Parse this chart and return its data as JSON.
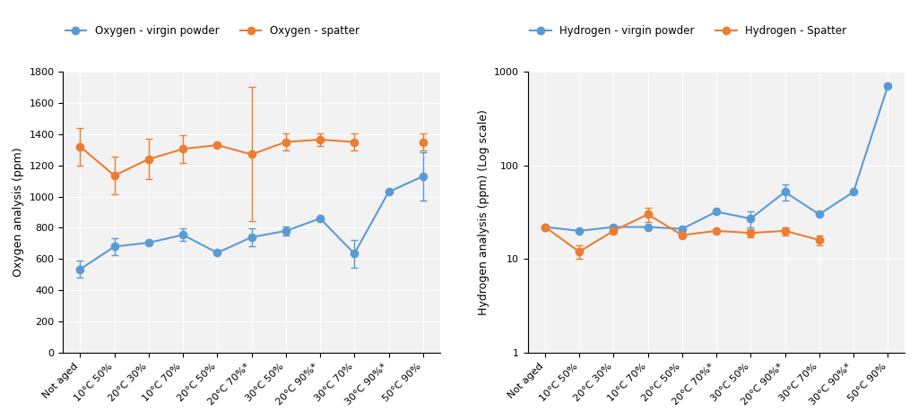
{
  "categories": [
    "Not aged",
    "10°C 50%",
    "20°C 30%",
    "10°C 70%",
    "20°C 50%",
    "20°C 70%*",
    "30°C 50%",
    "20°C 90%*",
    "30°C 70%",
    "30°C 90%*",
    "50°C 90%"
  ],
  "oxy_powder": [
    535,
    680,
    705,
    755,
    640,
    740,
    780,
    860,
    635,
    1030,
    1130
  ],
  "oxy_powder_err": [
    55,
    55,
    0,
    40,
    0,
    55,
    30,
    0,
    90,
    0,
    155
  ],
  "oxy_spatter": [
    1320,
    1135,
    1240,
    1305,
    1330,
    1270,
    1350,
    1365,
    1350,
    null,
    1350
  ],
  "oxy_spatter_err": [
    120,
    120,
    130,
    90,
    0,
    430,
    55,
    40,
    55,
    null,
    55
  ],
  "hyd_powder": [
    22,
    20,
    22,
    22,
    21,
    32,
    27,
    52,
    30,
    52,
    700
  ],
  "hyd_powder_err": [
    0,
    0,
    0,
    0,
    0,
    0,
    5,
    10,
    0,
    0,
    0
  ],
  "hyd_spatter": [
    22,
    12,
    20,
    30,
    18,
    20,
    19,
    20,
    16,
    null,
    null
  ],
  "hyd_spatter_err": [
    0,
    2,
    0,
    5,
    0,
    0,
    2,
    2,
    2,
    null,
    null
  ],
  "blue_color": "#5B9BD5",
  "orange_color": "#ED7D31",
  "marker_size": 6,
  "line_width": 1.5,
  "oxy_ylabel": "Oxygen analysis (ppm)",
  "hyd_ylabel": "Hydrogen analysis (ppm) (Log scale)",
  "oxy_legend1": "Oxygen - virgin powder",
  "oxy_legend2": "Oxygen - spatter",
  "hyd_legend1": "Hydrogen - virgin powder",
  "hyd_legend2": "Hydrogen - Spatter",
  "oxy_ylim": [
    0,
    1800
  ],
  "oxy_yticks": [
    0,
    200,
    400,
    600,
    800,
    1000,
    1200,
    1400,
    1600,
    1800
  ]
}
